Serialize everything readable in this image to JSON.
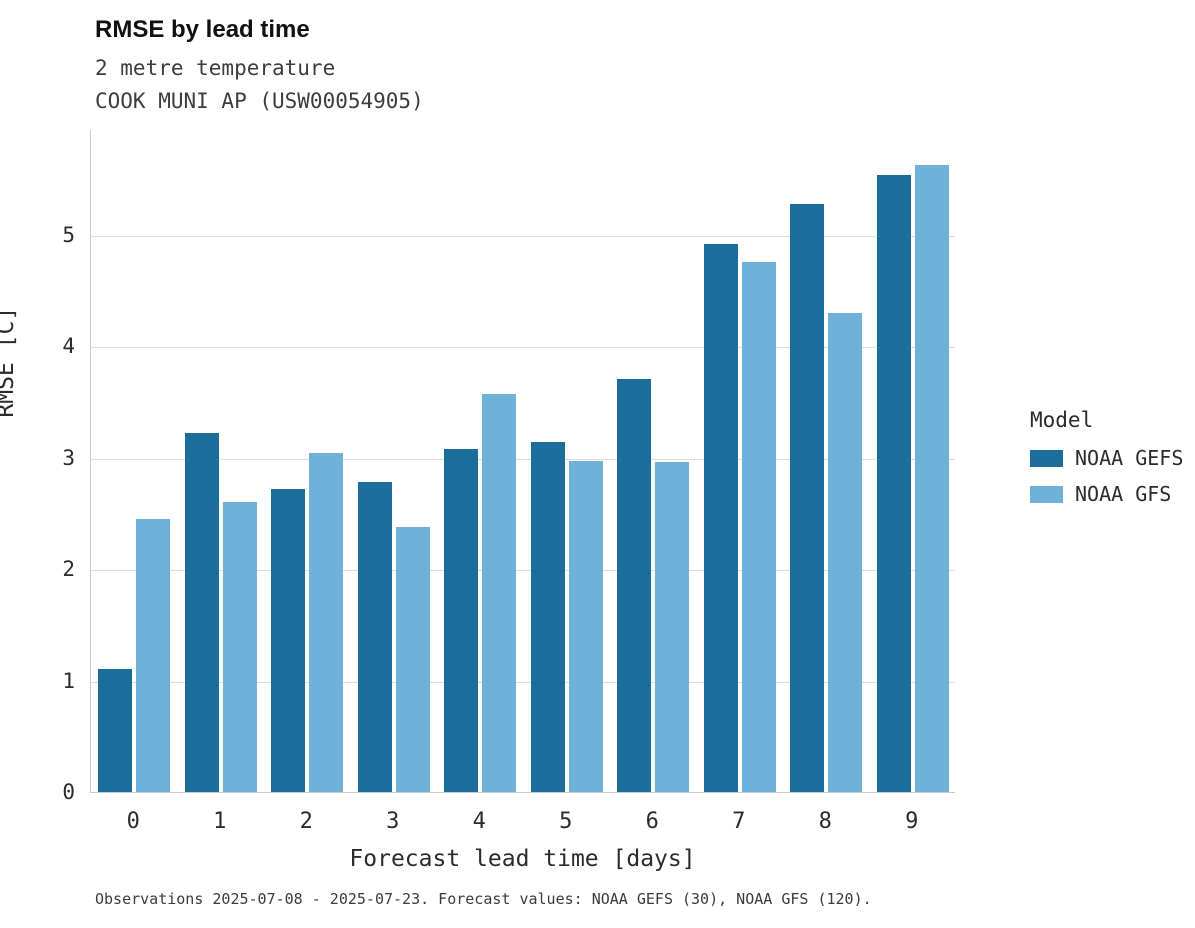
{
  "header": {
    "title": "RMSE by lead time",
    "subtitle_line1": "2 metre temperature",
    "subtitle_line2": "COOK MUNI AP (USW00054905)"
  },
  "chart_data": {
    "type": "bar",
    "title": "RMSE by lead time",
    "subtitle": [
      "2 metre temperature",
      "COOK MUNI AP (USW00054905)"
    ],
    "categories": [
      "0",
      "1",
      "2",
      "3",
      "4",
      "5",
      "6",
      "7",
      "8",
      "9"
    ],
    "series": [
      {
        "name": "NOAA GEFS",
        "color": "#1b6d9c",
        "values": [
          1.1,
          3.22,
          2.72,
          2.78,
          3.08,
          3.14,
          3.71,
          4.92,
          5.28,
          5.54
        ]
      },
      {
        "name": "NOAA GFS",
        "color": "#6fb2d9",
        "values": [
          2.45,
          2.6,
          3.04,
          2.38,
          3.57,
          2.97,
          2.96,
          4.76,
          4.3,
          5.63
        ]
      }
    ],
    "xlabel": "Forecast lead time [days]",
    "ylabel": "RMSE [C]",
    "ylim": [
      0,
      5.95
    ],
    "yticks": [
      0,
      1,
      2,
      3,
      4,
      5
    ],
    "grid": true,
    "legend_title": "Model",
    "legend_position": "right"
  },
  "footer": {
    "caption": "Observations 2025-07-08 - 2025-07-23. Forecast values: NOAA GEFS (30), NOAA GFS (120)."
  }
}
